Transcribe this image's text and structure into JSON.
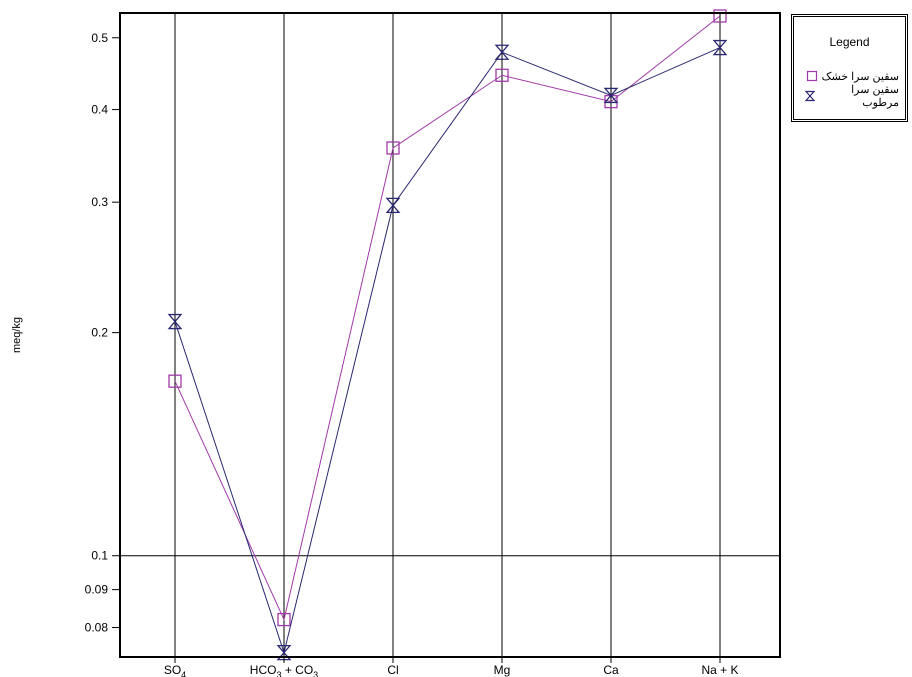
{
  "chart_data": {
    "type": "line",
    "ylabel": "meq/kg",
    "yscale": "log",
    "ylim": [
      0.073,
      0.54
    ],
    "grid": "vertical lines at categories; horizontal line at 0.1",
    "categories": [
      {
        "main": "SO",
        "sub": "4",
        "rest": ""
      },
      {
        "main": "HCO",
        "sub": "3",
        "rest": " + CO",
        "sub2": "3"
      },
      {
        "main": "Cl",
        "sub": "",
        "rest": ""
      },
      {
        "main": "Mg",
        "sub": "",
        "rest": ""
      },
      {
        "main": "Ca",
        "sub": "",
        "rest": ""
      },
      {
        "main": "Na + K",
        "sub": "",
        "rest": ""
      }
    ],
    "yticks": [
      "0.08",
      "0.09",
      "0.1",
      "0.2",
      "0.3",
      "0.4",
      "0.5"
    ],
    "ytick_values": [
      0.08,
      0.09,
      0.1,
      0.2,
      0.3,
      0.4,
      0.5
    ],
    "series": [
      {
        "name": "سقین سرا خشک",
        "marker": "square",
        "color": "#a03aa8",
        "values": [
          0.172,
          0.082,
          0.355,
          0.445,
          0.41,
          0.535
        ]
      },
      {
        "name": "سقین سرا مرطوب",
        "marker": "hourglass",
        "color": "#2a2870",
        "values": [
          0.207,
          0.074,
          0.297,
          0.478,
          0.418,
          0.485
        ]
      }
    ],
    "legend": {
      "title": "Legend",
      "position": "top-right outside plot"
    }
  }
}
